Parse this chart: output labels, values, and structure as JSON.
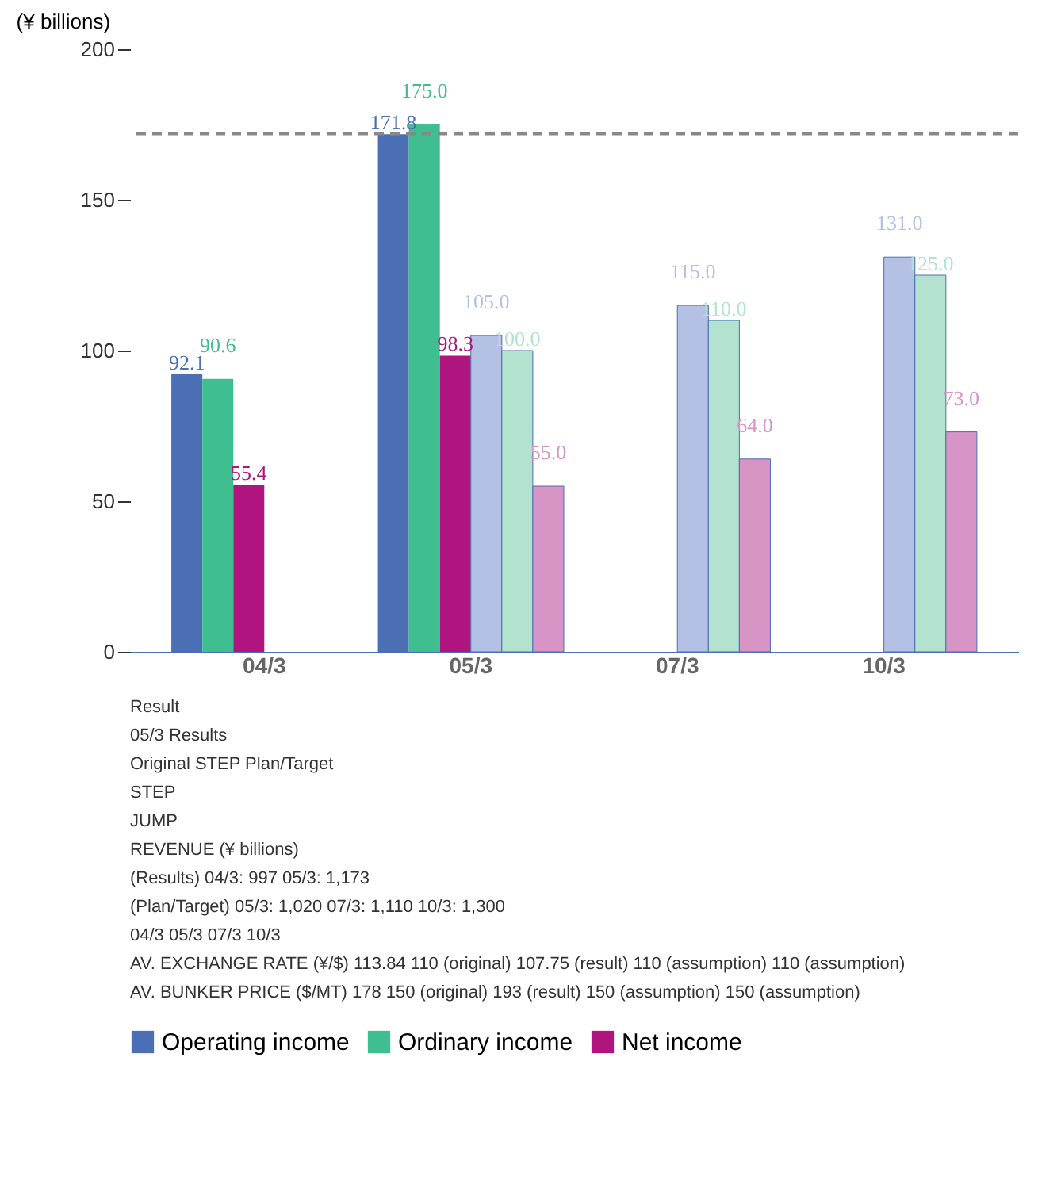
{
  "chart_data": {
    "type": "bar",
    "ylabel": "(¥ billions)",
    "categories": [
      "04/3",
      "05/3",
      "07/3",
      "10/3"
    ],
    "series": [
      {
        "name": "Operating income",
        "color": "#4a6fb5",
        "values": [
          92.1,
          171.8,
          null,
          null
        ],
        "value_labels": [
          "92.1",
          "171.8",
          null,
          null
        ]
      },
      {
        "name": "Ordinary income",
        "color": "#3fbf8f",
        "values": [
          90.6,
          175.0,
          null,
          null
        ],
        "value_labels": [
          "90.6",
          "175.0",
          null,
          null
        ]
      },
      {
        "name": "Net income",
        "color": "#b0157f",
        "values": [
          55.4,
          98.3,
          null,
          null
        ],
        "value_labels": [
          "55.4",
          "98.3",
          null,
          null
        ]
      },
      {
        "color": "#b4c0e4",
        "values": [
          null,
          105.0,
          115.0,
          131.0
        ],
        "value_labels": [
          null,
          "105.0",
          "115.0",
          "131.0"
        ]
      },
      {
        "color": "#b3e3cf",
        "values": [
          null,
          100.0,
          110.0,
          125.0
        ],
        "value_labels": [
          null,
          "100.0",
          "110.0",
          "125.0"
        ]
      },
      {
        "color": "#d795c5",
        "values": [
          null,
          55.0,
          64.0,
          73.0
        ],
        "value_labels": [
          null,
          "55.0",
          "64.0",
          "73.0"
        ]
      }
    ],
    "ylim": [
      0,
      200
    ],
    "yticks": [
      0,
      50,
      100,
      150,
      200
    ],
    "grid": false,
    "legend": "bottom",
    "ref_lines": [
      {
        "axis": "y",
        "value": 172,
        "color": "#888888",
        "line_style": "dashed"
      }
    ],
    "annotations": [
      "Result",
      "05/3 Results",
      "Original STEP Plan/Target",
      "STEP",
      "JUMP",
      "REVENUE (¥ billions)",
      "(Results)    04/3: 997    05/3: 1,173",
      "(Plan/Target)    05/3: 1,020    07/3: 1,110    10/3: 1,300",
      "04/3    05/3    07/3    10/3",
      "AV. EXCHANGE RATE (¥/$)    113.84    110 (original)  107.75 (result)    110 (assumption)    110 (assumption)",
      "AV. BUNKER PRICE ($/MT)    178    150 (original)  193 (result)    150 (assumption)    150 (assumption)"
    ]
  }
}
